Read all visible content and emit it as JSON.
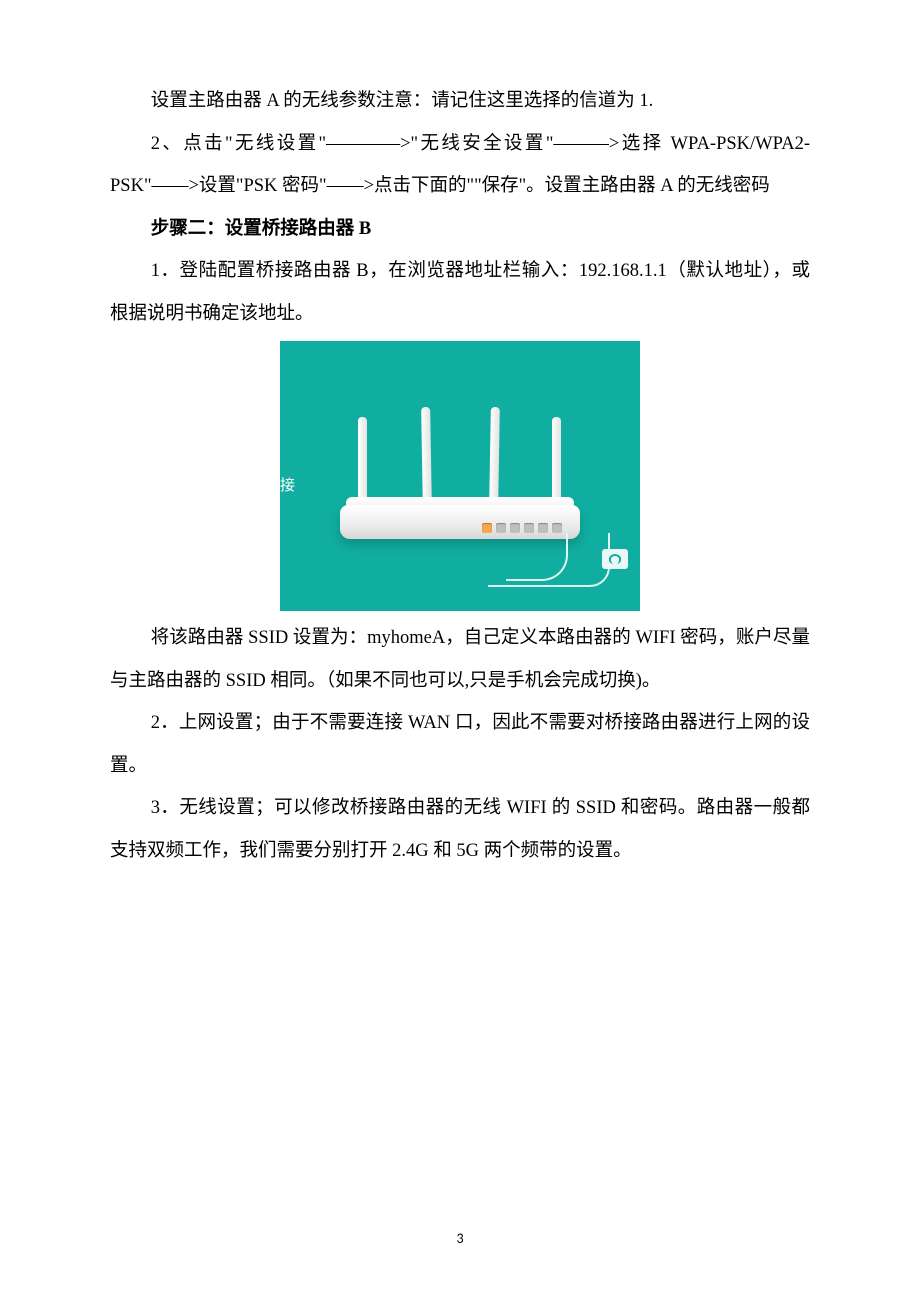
{
  "p1": "设置主路由器 A 的无线参数注意：请记住这里选择的信道为 1.",
  "p2": "2、点击\"无线设置\"————>\"无线安全设置\"———>选择 WPA-PSK/WPA2-PSK\"——>设置\"PSK 密码\"——>点击下面的\"\"保存\"。设置主路由器 A 的无线密码",
  "step2": "步骤二：设置桥接路由器 B",
  "p3": "1．登陆配置桥接路由器 B，在浏览器地址栏输入：192.168.1.1（默认地址），或根据说明书确定该地址。",
  "p4": "将该路由器 SSID 设置为：myhomeA，自己定义本路由器的 WIFI 密码，账户尽量与主路由器的 SSID 相同。（如果不同也可以,只是手机会完成切换)。",
  "p5": "2．上网设置；由于不需要连接 WAN 口，因此不需要对桥接路由器进行上网的设置。",
  "p6": "3．无线设置；可以修改桥接路由器的无线 WIFI 的 SSID 和密码。路由器一般都支持双频工作，我们需要分别打开 2.4G 和 5G 两个频带的设置。",
  "figureSideLabel": "接",
  "pageNumber": "3",
  "routerImage": {
    "type": "illustration",
    "background_color": "#10aea0",
    "router_color": "#ffffff",
    "antenna_count": 4,
    "port_count": 6,
    "wan_port_color": "#f6a94b",
    "lan_port_color": "#bfbfbf",
    "cable_color": "#dff6f3",
    "badge_background": "#e9f7f5"
  }
}
